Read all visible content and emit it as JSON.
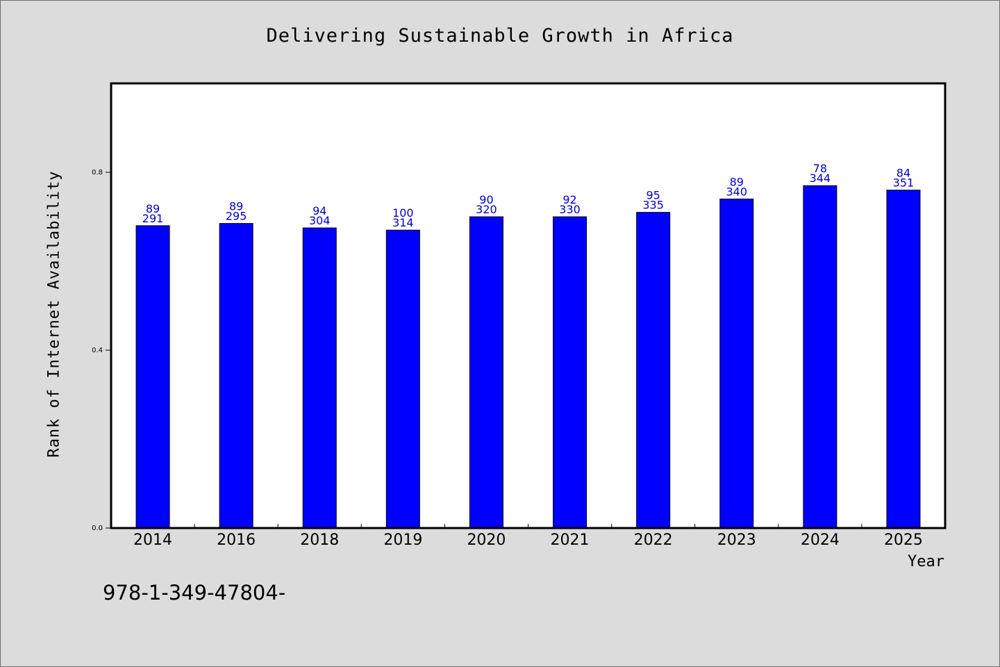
{
  "chart_data": {
    "type": "bar",
    "title": "Delivering Sustainable Growth in Africa",
    "xlabel": "Year",
    "ylabel": "Rank of Internet Availability",
    "categories": [
      "2014",
      "2016",
      "2018",
      "2019",
      "2020",
      "2021",
      "2022",
      "2023",
      "2024",
      "2025"
    ],
    "values": [
      0.68,
      0.685,
      0.675,
      0.67,
      0.7,
      0.7,
      0.71,
      0.74,
      0.77,
      0.76
    ],
    "label_top": [
      "89",
      "89",
      "94",
      "100",
      "90",
      "92",
      "95",
      "89",
      "78",
      "84"
    ],
    "label_bottom": [
      "291",
      "295",
      "304",
      "314",
      "320",
      "330",
      "335",
      "340",
      "344",
      "351"
    ],
    "yticks": [
      0.0,
      0.4,
      0.8
    ],
    "ytick_labels": [
      "0.0",
      "0.4",
      "0.8"
    ],
    "ylim": [
      0,
      1.0
    ],
    "grid": false,
    "colors": {
      "bar": "#0000ff",
      "bar_edge": "#000000",
      "label": "#0000cc",
      "background": "#dcdcdc",
      "plot": "#ffffff"
    }
  },
  "footer": {
    "code": "978-1-349-47804-"
  }
}
